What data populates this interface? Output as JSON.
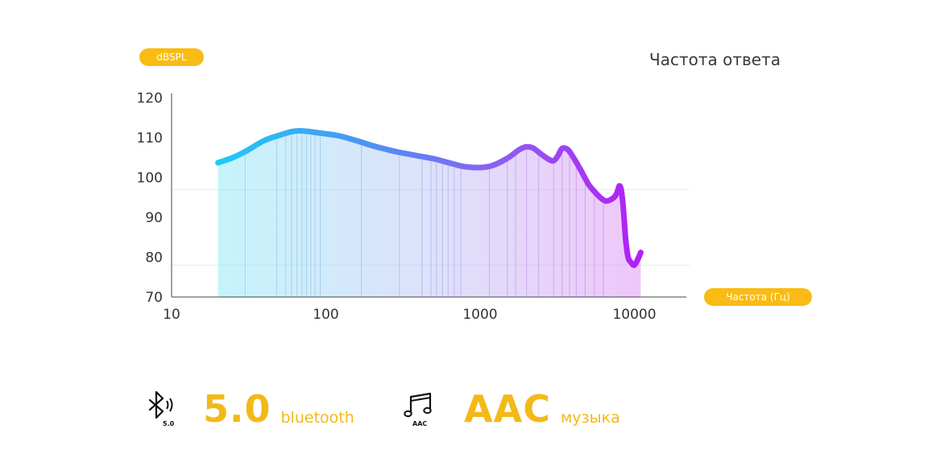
{
  "title": "Частота ответа",
  "y_axis_label": "dBSPL",
  "x_axis_label": "Частота (Гц)",
  "chart_data": {
    "type": "area",
    "title": "Частота ответа",
    "xlabel": "Частота (Гц)",
    "ylabel": "dBSPL",
    "xscale": "log",
    "xlim": [
      10,
      20000
    ],
    "ylim": [
      70,
      120
    ],
    "x_ticks": [
      "10",
      "100",
      "1000",
      "10000"
    ],
    "y_ticks": [
      "120",
      "110",
      "100",
      "90",
      "80",
      "70"
    ],
    "grid": "faint horizontal lines at ~97 and ~78",
    "series": [
      {
        "x": [
          20,
          25,
          30,
          40,
          50,
          60,
          70,
          90,
          120,
          150,
          200,
          250,
          300,
          400,
          500,
          600,
          700,
          800,
          1000,
          1200,
          1500,
          1800,
          2000,
          2200,
          2500,
          2800,
          3000,
          3200,
          3400,
          3700,
          4000,
          4500,
          5000,
          5500,
          6000,
          6500,
          7000,
          7500,
          7800,
          8000,
          8200,
          8400,
          8600,
          8800,
          9100,
          9500,
          10000,
          10600,
          11000
        ],
        "y": [
          103.7,
          105.0,
          106.5,
          109.3,
          110.6,
          111.5,
          111.7,
          111.2,
          110.5,
          109.5,
          108.0,
          107.0,
          106.3,
          105.4,
          104.7,
          103.9,
          103.2,
          102.7,
          102.5,
          103.0,
          104.8,
          107.0,
          107.7,
          107.4,
          105.8,
          104.5,
          104.2,
          105.5,
          107.3,
          107.0,
          105.2,
          101.8,
          98.5,
          96.5,
          95.0,
          94.1,
          94.4,
          95.3,
          96.7,
          97.9,
          97.0,
          94.0,
          89.0,
          84.0,
          80.0,
          78.7,
          78.0,
          79.7,
          81.2
        ]
      }
    ],
    "vertical_lines_hz": [
      30,
      48,
      55,
      60,
      65,
      70,
      75,
      80,
      85,
      92,
      170,
      300,
      420,
      480,
      520,
      570,
      620,
      680,
      750,
      1150,
      1500,
      1700,
      2000,
      2400,
      3000,
      3400,
      3800,
      4200,
      4800,
      5500,
      6300
    ]
  },
  "features": [
    {
      "icon": "bluetooth-icon",
      "icon_caption": "5.0",
      "value": "5.0",
      "label": "bluetooth"
    },
    {
      "icon": "music-note-icon",
      "icon_caption": "AAC",
      "value": "AAC",
      "label": "музыка"
    }
  ],
  "colors": {
    "accent": "#f9bb14",
    "curve_start": "#1ecbf5",
    "curve_end": "#b31df5"
  }
}
